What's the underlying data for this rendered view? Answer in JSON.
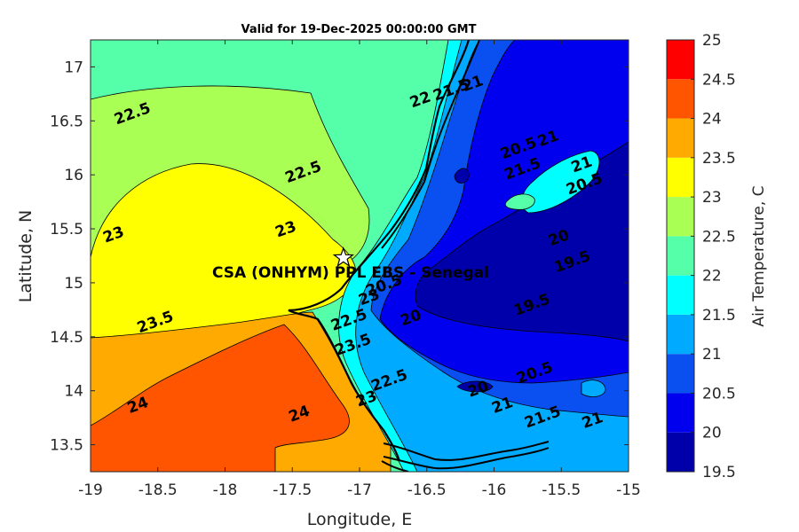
{
  "chart_data": {
    "type": "heatmap",
    "subtype": "filled-contour",
    "title": "Valid for 19-Dec-2025 00:00:00 GMT",
    "xlabel": "Longitude, E",
    "ylabel": "Latitude, N",
    "xlim": [
      -19,
      -15
    ],
    "ylim": [
      13.25,
      17.25
    ],
    "xticks": [
      "-19",
      "-18.5",
      "-18",
      "-17.5",
      "-17",
      "-16.5",
      "-16",
      "-15.5",
      "-15"
    ],
    "yticks": [
      "13.5",
      "14",
      "14.5",
      "15",
      "15.5",
      "16",
      "16.5",
      "17"
    ],
    "grid": false,
    "colorbar": {
      "label": "Air Temperature, C",
      "levels": [
        19.5,
        20,
        20.5,
        21,
        21.5,
        22,
        22.5,
        23,
        23.5,
        24,
        24.5,
        25
      ],
      "tick_labels": [
        "19.5",
        "20",
        "20.5",
        "21",
        "21.5",
        "22",
        "22.5",
        "23",
        "23.5",
        "24",
        "24.5",
        "25"
      ],
      "colors": [
        "#0000aa",
        "#0000ee",
        "#0a50f0",
        "#00aaff",
        "#00ffff",
        "#55ffaa",
        "#aaff55",
        "#ffff00",
        "#ffaa00",
        "#ff5500",
        "#ff0000",
        "#aa0000"
      ]
    },
    "site": {
      "label": "CSA (ONHYM) PPL EBS  - Senegal",
      "lon": -17.12,
      "lat": 15.23
    },
    "contour_labels": [
      {
        "text": "22.5",
        "lon": -18.69,
        "lat": 16.57
      },
      {
        "text": "22.5",
        "lon": -17.42,
        "lat": 16.03
      },
      {
        "text": "23",
        "lon": -17.55,
        "lat": 15.5
      },
      {
        "text": "23",
        "lon": -18.83,
        "lat": 15.45
      },
      {
        "text": "23.5",
        "lon": -18.52,
        "lat": 14.64
      },
      {
        "text": "24",
        "lon": -18.65,
        "lat": 13.87
      },
      {
        "text": "24",
        "lon": -17.45,
        "lat": 13.79
      },
      {
        "text": "23.5",
        "lon": -17.05,
        "lat": 14.43
      },
      {
        "text": "22.5",
        "lon": -16.78,
        "lat": 14.1
      },
      {
        "text": "23",
        "lon": -16.93,
        "lat": 14.87
      },
      {
        "text": "22.5",
        "lon": -17.08,
        "lat": 14.66
      },
      {
        "text": "23",
        "lon": -16.95,
        "lat": 13.93
      },
      {
        "text": "20.5",
        "lon": -16.82,
        "lat": 14.98
      },
      {
        "text": "22",
        "lon": -16.55,
        "lat": 16.7
      },
      {
        "text": "21.5",
        "lon": -16.32,
        "lat": 16.79
      },
      {
        "text": "21",
        "lon": -16.16,
        "lat": 16.85
      },
      {
        "text": "20.5",
        "lon": -15.82,
        "lat": 16.25
      },
      {
        "text": "21",
        "lon": -15.6,
        "lat": 16.34
      },
      {
        "text": "21.5",
        "lon": -15.79,
        "lat": 16.06
      },
      {
        "text": "21",
        "lon": -15.35,
        "lat": 16.1
      },
      {
        "text": "20.5",
        "lon": -15.33,
        "lat": 15.92
      },
      {
        "text": "20",
        "lon": -15.52,
        "lat": 15.42
      },
      {
        "text": "19.5",
        "lon": -15.42,
        "lat": 15.2
      },
      {
        "text": "19.5",
        "lon": -15.72,
        "lat": 14.8
      },
      {
        "text": "20",
        "lon": -16.62,
        "lat": 14.68
      },
      {
        "text": "20",
        "lon": -16.12,
        "lat": 14.02
      },
      {
        "text": "20.5",
        "lon": -15.7,
        "lat": 14.17
      },
      {
        "text": "21",
        "lon": -15.94,
        "lat": 13.87
      },
      {
        "text": "21.5",
        "lon": -15.64,
        "lat": 13.76
      },
      {
        "text": "21",
        "lon": -15.27,
        "lat": 13.73
      }
    ]
  }
}
